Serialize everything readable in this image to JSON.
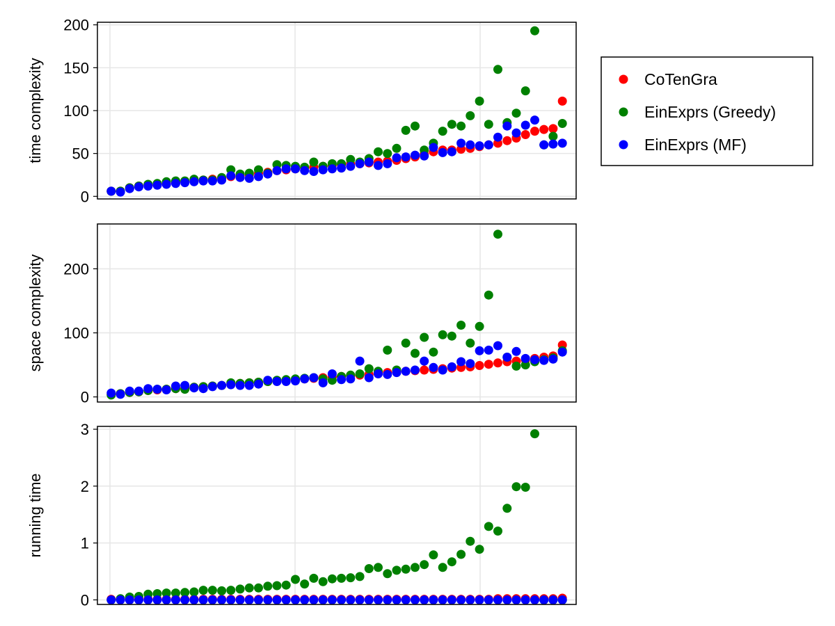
{
  "colors": {
    "CoTenGra": "#ff0000",
    "EinExprs (Greedy)": "#008000",
    "EinExprs (MF)": "#0000ff",
    "grid": "#e6e6e6",
    "frame": "#000000"
  },
  "legend": {
    "placement": "right",
    "entries": [
      "CoTenGra",
      "EinExprs (Greedy)",
      "EinExprs (MF)"
    ]
  },
  "chart_data": [
    {
      "type": "scatter",
      "ylabel": "time complexity",
      "xlabel": "",
      "ylim": [
        -3,
        203
      ],
      "yticks": [
        0,
        50,
        100,
        150,
        200
      ],
      "xlim": [
        -0.5,
        51.5
      ],
      "x_tick_labels": "hidden",
      "grid": true,
      "series": [
        {
          "name": "CoTenGra",
          "x": [
            1,
            2,
            3,
            4,
            5,
            6,
            7,
            8,
            9,
            10,
            11,
            12,
            13,
            14,
            15,
            16,
            17,
            18,
            19,
            20,
            21,
            22,
            23,
            24,
            25,
            26,
            27,
            28,
            29,
            30,
            31,
            32,
            33,
            34,
            35,
            36,
            37,
            38,
            39,
            40,
            41,
            42,
            43,
            44,
            45,
            46,
            47,
            48,
            49,
            50
          ],
          "y": [
            6,
            6,
            10,
            12,
            13,
            14,
            15,
            16,
            17,
            18,
            19,
            20,
            21,
            23,
            24,
            25,
            27,
            28,
            30,
            31,
            32,
            33,
            34,
            35,
            36,
            37,
            38,
            38,
            39,
            40,
            41,
            42,
            44,
            46,
            49,
            52,
            54,
            54,
            55,
            56,
            58,
            60,
            62,
            65,
            68,
            72,
            76,
            78,
            79,
            111
          ]
        },
        {
          "name": "EinExprs (Greedy)",
          "x": [
            1,
            2,
            3,
            4,
            5,
            6,
            7,
            8,
            9,
            10,
            11,
            12,
            13,
            14,
            15,
            16,
            17,
            18,
            19,
            20,
            21,
            22,
            23,
            24,
            25,
            26,
            27,
            28,
            29,
            30,
            31,
            32,
            33,
            34,
            35,
            36,
            37,
            38,
            39,
            40,
            41,
            42,
            43,
            44,
            45,
            46,
            47,
            48,
            49,
            50
          ],
          "y": [
            6,
            6,
            10,
            12,
            14,
            15,
            17,
            18,
            18,
            20,
            19,
            19,
            22,
            31,
            26,
            27,
            31,
            27,
            37,
            36,
            35,
            34,
            40,
            35,
            38,
            38,
            43,
            40,
            44,
            52,
            50,
            56,
            77,
            82,
            54,
            62,
            76,
            84,
            82,
            94,
            111,
            84,
            148,
            86,
            97,
            123,
            193,
            60,
            70,
            85
          ]
        },
        {
          "name": "EinExprs (MF)",
          "x": [
            1,
            2,
            3,
            4,
            5,
            6,
            7,
            8,
            9,
            10,
            11,
            12,
            13,
            14,
            15,
            16,
            17,
            18,
            19,
            20,
            21,
            22,
            23,
            24,
            25,
            26,
            27,
            28,
            29,
            30,
            31,
            32,
            33,
            34,
            35,
            36,
            37,
            38,
            39,
            40,
            41,
            42,
            43,
            44,
            45,
            46,
            47,
            48,
            49,
            50
          ],
          "y": [
            6,
            5,
            9,
            11,
            12,
            13,
            14,
            15,
            16,
            17,
            18,
            18,
            19,
            24,
            22,
            21,
            23,
            26,
            30,
            32,
            32,
            30,
            29,
            31,
            32,
            33,
            35,
            38,
            40,
            36,
            38,
            45,
            46,
            48,
            47,
            57,
            51,
            52,
            62,
            60,
            59,
            60,
            69,
            82,
            74,
            83,
            89,
            60,
            61,
            62
          ]
        }
      ]
    },
    {
      "type": "scatter",
      "ylabel": "space complexity",
      "xlabel": "",
      "ylim": [
        -8,
        270
      ],
      "yticks": [
        0,
        100,
        200
      ],
      "xlim": [
        -0.5,
        51.5
      ],
      "x_tick_labels": "hidden",
      "grid": true,
      "series": [
        {
          "name": "CoTenGra",
          "x": [
            1,
            2,
            3,
            4,
            5,
            6,
            7,
            8,
            9,
            10,
            11,
            12,
            13,
            14,
            15,
            16,
            17,
            18,
            19,
            20,
            21,
            22,
            23,
            24,
            25,
            26,
            27,
            28,
            29,
            30,
            31,
            32,
            33,
            34,
            35,
            36,
            37,
            38,
            39,
            40,
            41,
            42,
            43,
            44,
            45,
            46,
            47,
            48,
            49,
            50
          ],
          "y": [
            4,
            5,
            7,
            8,
            10,
            11,
            12,
            13,
            14,
            15,
            16,
            17,
            18,
            20,
            21,
            22,
            23,
            24,
            25,
            26,
            27,
            28,
            29,
            30,
            31,
            32,
            33,
            34,
            35,
            37,
            38,
            39,
            40,
            41,
            42,
            43,
            44,
            45,
            46,
            47,
            49,
            51,
            53,
            55,
            56,
            58,
            60,
            62,
            64,
            81
          ]
        },
        {
          "name": "EinExprs (Greedy)",
          "x": [
            1,
            2,
            3,
            4,
            5,
            6,
            7,
            8,
            9,
            10,
            11,
            12,
            13,
            14,
            15,
            16,
            17,
            18,
            19,
            20,
            21,
            22,
            23,
            24,
            25,
            26,
            27,
            28,
            29,
            30,
            31,
            32,
            33,
            34,
            35,
            36,
            37,
            38,
            39,
            40,
            41,
            42,
            43,
            44,
            45,
            46,
            47,
            48,
            49,
            50
          ],
          "y": [
            3,
            5,
            7,
            8,
            10,
            12,
            12,
            13,
            12,
            15,
            16,
            17,
            18,
            22,
            21,
            22,
            23,
            24,
            26,
            27,
            28,
            29,
            30,
            28,
            26,
            32,
            34,
            36,
            44,
            40,
            73,
            42,
            84,
            68,
            93,
            70,
            97,
            95,
            112,
            84,
            110,
            159,
            254,
            62,
            48,
            50,
            55,
            58,
            61,
            72
          ]
        },
        {
          "name": "EinExprs (MF)",
          "x": [
            1,
            2,
            3,
            4,
            5,
            6,
            7,
            8,
            9,
            10,
            11,
            12,
            13,
            14,
            15,
            16,
            17,
            18,
            19,
            20,
            21,
            22,
            23,
            24,
            25,
            26,
            27,
            28,
            29,
            30,
            31,
            32,
            33,
            34,
            35,
            36,
            37,
            38,
            39,
            40,
            41,
            42,
            43,
            44,
            45,
            46,
            47,
            48,
            49,
            50
          ],
          "y": [
            6,
            4,
            9,
            9,
            13,
            12,
            11,
            17,
            18,
            14,
            13,
            16,
            18,
            19,
            18,
            18,
            20,
            26,
            24,
            24,
            25,
            28,
            30,
            22,
            36,
            27,
            28,
            56,
            30,
            36,
            35,
            38,
            40,
            42,
            56,
            46,
            42,
            47,
            55,
            52,
            72,
            73,
            80,
            62,
            71,
            60,
            58,
            57,
            59,
            70
          ]
        }
      ]
    },
    {
      "type": "scatter",
      "ylabel": "running time",
      "xlabel": "",
      "ylim": [
        -0.08,
        3.05
      ],
      "yticks": [
        0,
        1,
        2,
        3
      ],
      "xlim": [
        -0.5,
        51.5
      ],
      "x_tick_labels": "hidden",
      "grid": true,
      "series": [
        {
          "name": "CoTenGra",
          "x": [
            1,
            2,
            3,
            4,
            5,
            6,
            7,
            8,
            9,
            10,
            11,
            12,
            13,
            14,
            15,
            16,
            17,
            18,
            19,
            20,
            21,
            22,
            23,
            24,
            25,
            26,
            27,
            28,
            29,
            30,
            31,
            32,
            33,
            34,
            35,
            36,
            37,
            38,
            39,
            40,
            41,
            42,
            43,
            44,
            45,
            46,
            47,
            48,
            49,
            50
          ],
          "y": [
            0.01,
            0.01,
            0.01,
            0.01,
            0.01,
            0.01,
            0.01,
            0.01,
            0.01,
            0.01,
            0.01,
            0.01,
            0.01,
            0.01,
            0.01,
            0.01,
            0.01,
            0.01,
            0.01,
            0.01,
            0.01,
            0.01,
            0.01,
            0.01,
            0.01,
            0.01,
            0.01,
            0.01,
            0.01,
            0.01,
            0.01,
            0.01,
            0.01,
            0.01,
            0.01,
            0.01,
            0.01,
            0.01,
            0.01,
            0.01,
            0.01,
            0.01,
            0.02,
            0.02,
            0.02,
            0.02,
            0.02,
            0.02,
            0.02,
            0.03
          ]
        },
        {
          "name": "EinExprs (Greedy)",
          "x": [
            1,
            2,
            3,
            4,
            5,
            6,
            7,
            8,
            9,
            10,
            11,
            12,
            13,
            14,
            15,
            16,
            17,
            18,
            19,
            20,
            21,
            22,
            23,
            24,
            25,
            26,
            27,
            28,
            29,
            30,
            31,
            32,
            33,
            34,
            35,
            36,
            37,
            38,
            39,
            40,
            41,
            42,
            43,
            44,
            45,
            46,
            47,
            48,
            49,
            50
          ],
          "y": [
            0.0,
            0.02,
            0.05,
            0.06,
            0.1,
            0.11,
            0.12,
            0.12,
            0.13,
            0.14,
            0.17,
            0.17,
            0.16,
            0.17,
            0.19,
            0.21,
            0.21,
            0.24,
            0.25,
            0.26,
            0.36,
            0.28,
            0.38,
            0.32,
            0.37,
            0.38,
            0.39,
            0.41,
            0.55,
            0.57,
            0.46,
            0.52,
            0.54,
            0.57,
            0.62,
            0.79,
            0.57,
            0.67,
            0.8,
            1.03,
            0.89,
            1.29,
            1.21,
            1.61,
            1.99,
            1.98,
            2.92,
            0.0,
            0.0,
            0.0
          ]
        },
        {
          "name": "EinExprs (MF)",
          "x": [
            1,
            2,
            3,
            4,
            5,
            6,
            7,
            8,
            9,
            10,
            11,
            12,
            13,
            14,
            15,
            16,
            17,
            18,
            19,
            20,
            21,
            22,
            23,
            24,
            25,
            26,
            27,
            28,
            29,
            30,
            31,
            32,
            33,
            34,
            35,
            36,
            37,
            38,
            39,
            40,
            41,
            42,
            43,
            44,
            45,
            46,
            47,
            48,
            49,
            50
          ],
          "y": [
            0,
            0,
            0,
            0,
            0,
            0,
            0,
            0,
            0,
            0,
            0,
            0,
            0,
            0,
            0,
            0,
            0,
            0,
            0,
            0,
            0,
            0,
            0,
            0,
            0,
            0,
            0,
            0,
            0,
            0,
            0,
            0,
            0,
            0,
            0,
            0,
            0,
            0,
            0,
            0,
            0,
            0,
            0,
            0,
            0,
            0,
            0,
            0,
            0,
            0
          ]
        }
      ]
    }
  ]
}
